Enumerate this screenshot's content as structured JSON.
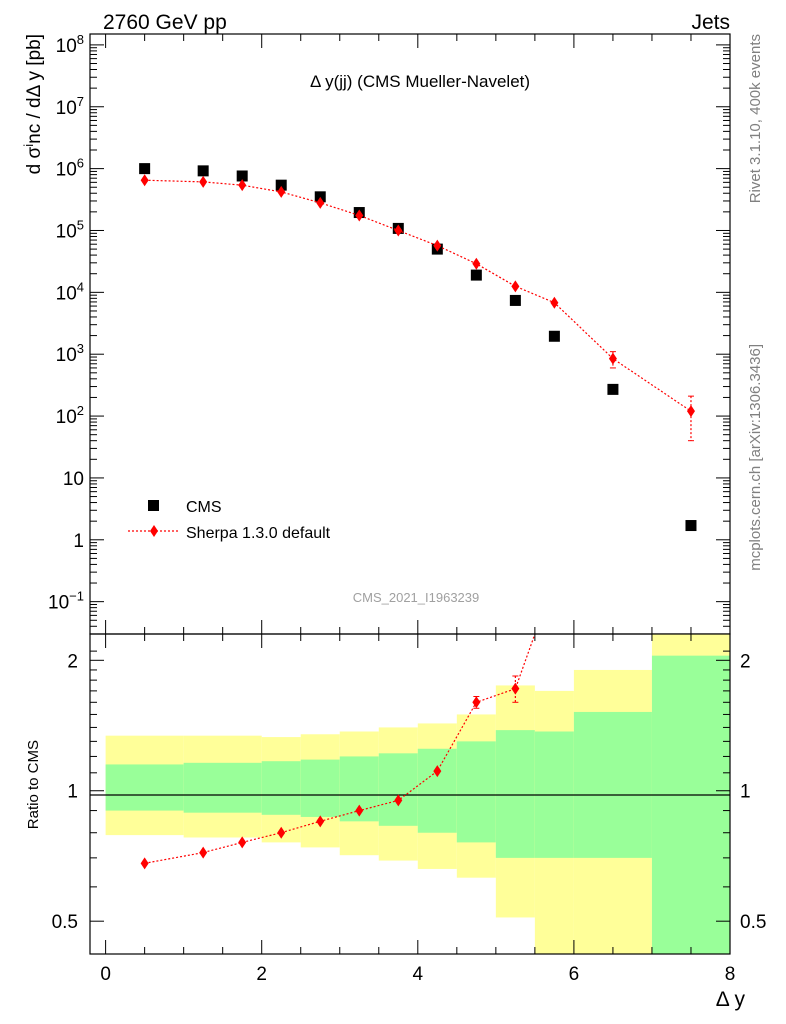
{
  "header": {
    "left": "2760 GeV pp",
    "right": "Jets"
  },
  "side_labels": {
    "rivet": "Rivet 3.1.10,  400k events",
    "mcplots": "mcplots.cern.ch [arXiv:1306.3436]"
  },
  "colors": {
    "cms": "#000000",
    "sherpa": "#ff0000",
    "band_yellow": "#ffff99",
    "band_green": "#99ff99"
  },
  "chart_data": [
    {
      "type": "scatter",
      "title": "Δ y(jj) (CMS Mueller-Navelet)",
      "watermark": "CMS_2021_I1963239",
      "ylabel": "d σ^inc / dΔ y [pb]",
      "yscale": "log",
      "ylim": [
        0.03,
        150000000
      ],
      "xlim": [
        -0.2,
        8
      ],
      "y_tick_labels": [
        "10−1",
        "1",
        "10",
        "102",
        "103",
        "104",
        "105",
        "106",
        "107",
        "108"
      ],
      "legend": {
        "placement": "bottom-left"
      },
      "series": [
        {
          "name": "CMS",
          "marker": "square",
          "x": [
            0.5,
            1.25,
            1.75,
            2.25,
            2.75,
            3.25,
            3.75,
            4.25,
            4.75,
            5.25,
            5.75,
            6.5,
            7.5
          ],
          "y": [
            1000000,
            920000,
            760000,
            540000,
            350000,
            195000,
            108000,
            50000,
            19000,
            7400,
            1950,
            270,
            1.7
          ]
        },
        {
          "name": "Sherpa 1.3.0 default",
          "marker": "diamond",
          "line": "dotted",
          "x": [
            0.5,
            1.25,
            1.75,
            2.25,
            2.75,
            3.25,
            3.75,
            4.25,
            4.75,
            5.25,
            5.75,
            6.5,
            7.5
          ],
          "y": [
            650000,
            610000,
            540000,
            420000,
            280000,
            175000,
            100000,
            57000,
            29000,
            12500,
            6800,
            850,
            120
          ],
          "y_err_low": [
            0,
            0,
            0,
            0,
            0,
            0,
            0,
            0,
            0,
            0,
            0,
            250,
            80
          ],
          "y_err_high": [
            0,
            0,
            0,
            0,
            0,
            0,
            0,
            0,
            0,
            0,
            0,
            250,
            90
          ]
        }
      ]
    },
    {
      "type": "scatter",
      "ylabel": "Ratio to CMS",
      "xlabel": "Δ y",
      "yscale": "log",
      "ylim": [
        0.42,
        2.3
      ],
      "xlim": [
        -0.2,
        8
      ],
      "x_ticks": [
        0,
        2,
        4,
        6,
        8
      ],
      "y_ticks": [
        0.5,
        1,
        2
      ],
      "reference_line": 1,
      "bands": {
        "edges": [
          0,
          1,
          2,
          2.5,
          3,
          3.5,
          4,
          4.5,
          5,
          5.5,
          6,
          7,
          8
        ],
        "green_low": [
          0.9,
          0.89,
          0.88,
          0.87,
          0.85,
          0.83,
          0.8,
          0.76,
          0.7,
          0.7,
          0.7,
          0.4
        ],
        "green_high": [
          1.15,
          1.16,
          1.17,
          1.18,
          1.2,
          1.22,
          1.25,
          1.3,
          1.38,
          1.37,
          1.52,
          2.05
        ],
        "yellow_low": [
          0.79,
          0.78,
          0.76,
          0.74,
          0.71,
          0.69,
          0.66,
          0.63,
          0.51,
          0.37,
          0.37,
          0.37
        ],
        "yellow_high": [
          1.34,
          1.34,
          1.33,
          1.35,
          1.37,
          1.4,
          1.43,
          1.5,
          1.75,
          1.7,
          1.9,
          2.3
        ]
      },
      "series": [
        {
          "name": "Sherpa 1.3.0 default",
          "marker": "diamond",
          "line": "dotted",
          "x": [
            0.5,
            1.25,
            1.75,
            2.25,
            2.75,
            3.25,
            3.75,
            4.25,
            4.75,
            5.25
          ],
          "y": [
            0.68,
            0.72,
            0.76,
            0.8,
            0.85,
            0.9,
            0.95,
            1.11,
            1.6,
            1.72
          ],
          "y_err_low": [
            0,
            0,
            0,
            0,
            0,
            0,
            0,
            0,
            0.05,
            0.12
          ],
          "y_err_high": [
            0,
            0,
            0,
            0,
            0,
            0,
            0,
            0,
            0.05,
            0.12
          ],
          "continues_above": 5.5
        }
      ]
    }
  ]
}
